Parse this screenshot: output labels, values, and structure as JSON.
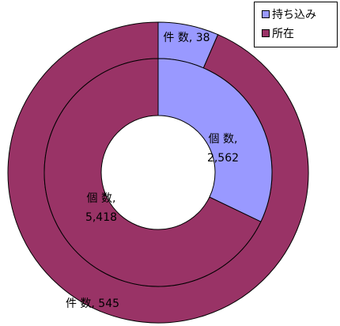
{
  "chart_data": {
    "type": "donut",
    "title": "",
    "categories": [
      "持ち込み",
      "所在"
    ],
    "colors": [
      "#9999ff",
      "#993366"
    ],
    "series": [
      {
        "ring": "outer",
        "label_prefix": "件 数",
        "values": [
          38,
          545
        ],
        "value_labels": [
          "38",
          "545"
        ]
      },
      {
        "ring": "inner",
        "label_prefix": "個 数",
        "values": [
          2562,
          5418
        ],
        "value_labels": [
          "2,562",
          "5,418"
        ]
      }
    ],
    "legend": {
      "position": "top-right",
      "items": [
        "持ち込み",
        "所在"
      ]
    }
  }
}
